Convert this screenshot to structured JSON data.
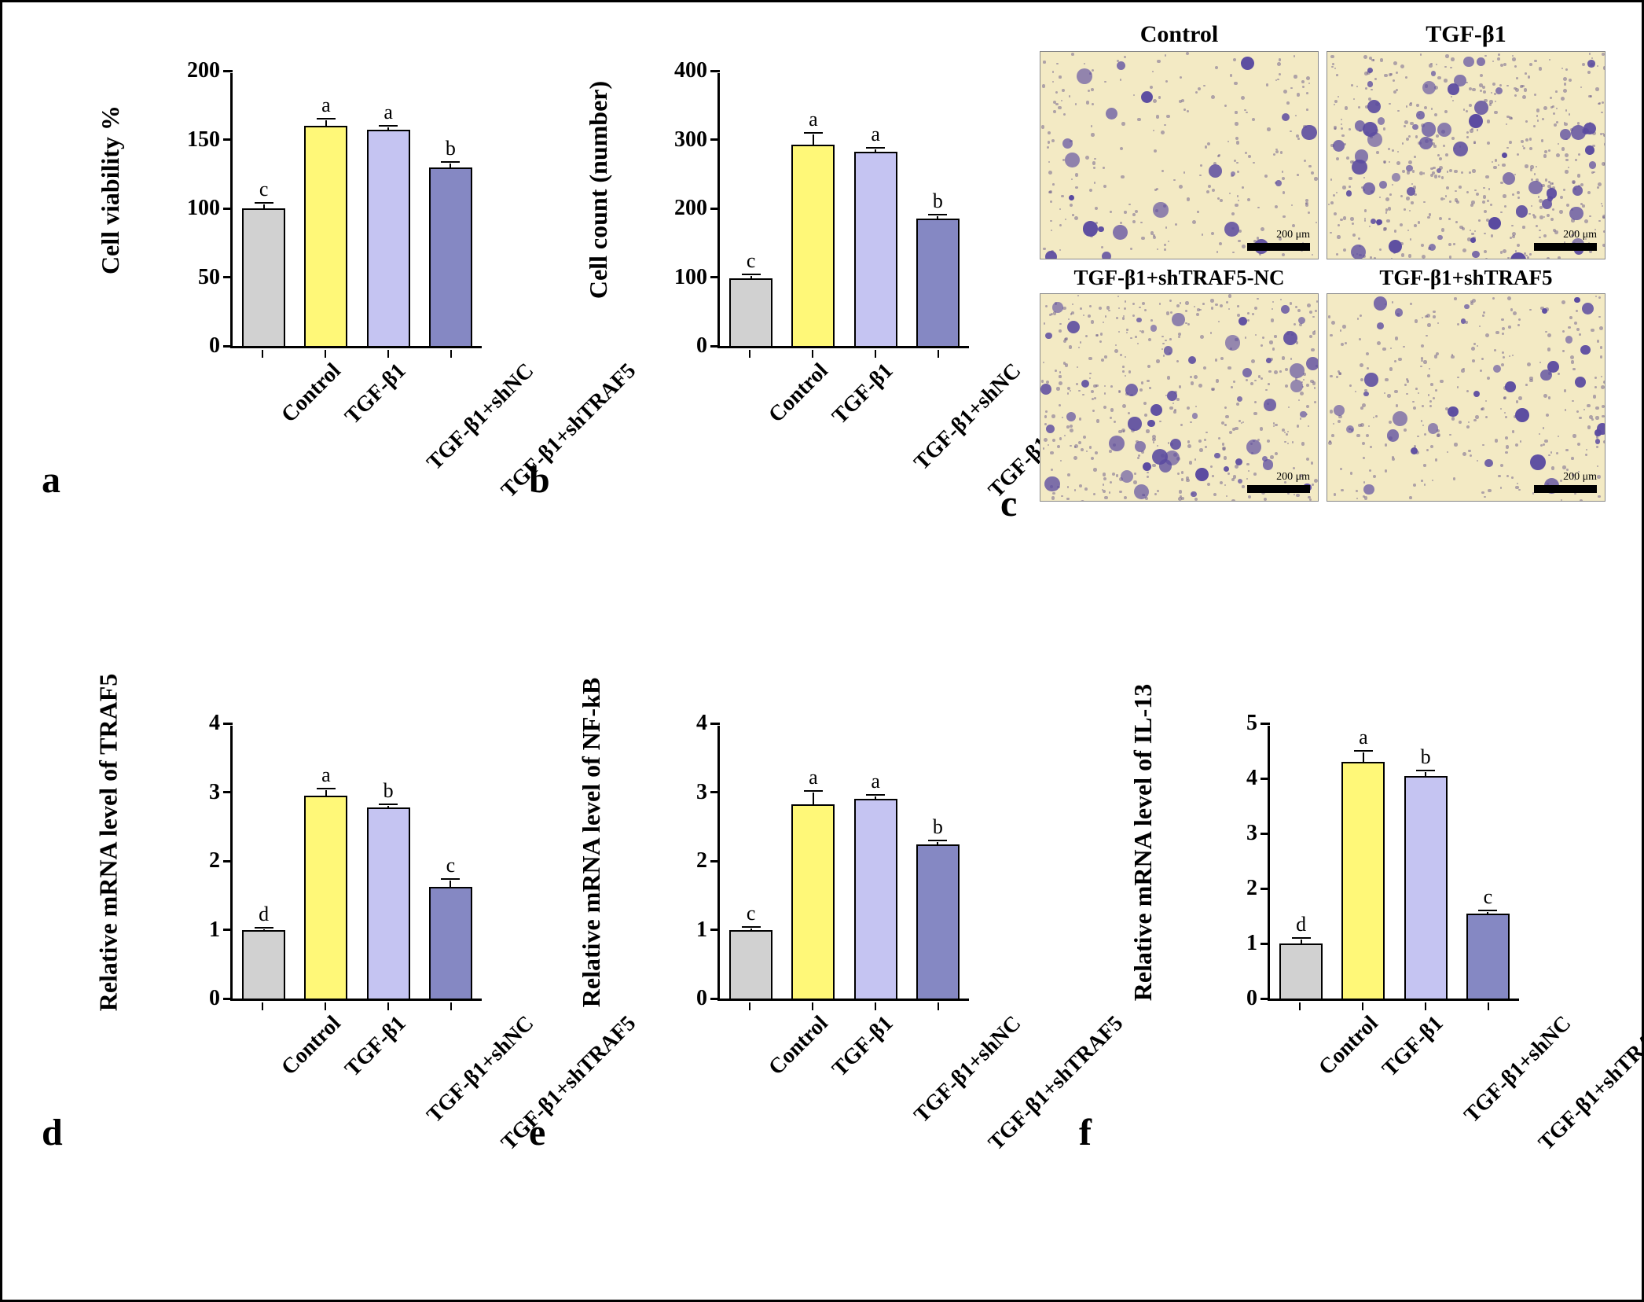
{
  "colors": {
    "control": "#d1d1d1",
    "tgfb1": "#fff878",
    "tgfb1_shnc": "#c5c4f2",
    "tgfb1_shtraf5": "#8588c3",
    "axis": "#000000",
    "bg": "#ffffff",
    "micro_bg": "#f3eac4",
    "micro_dot": "#5a4aa0"
  },
  "typography": {
    "axis_font": "Times New Roman",
    "axis_label_pt": 32,
    "tick_label_pt": 28,
    "sig_pt": 26,
    "panel_letter_pt": 48
  },
  "categories": [
    "Control",
    "TGF-β1",
    "TGF-β1+shNC",
    "TGF-β1+shTRAF5"
  ],
  "charts": {
    "a": {
      "type": "bar",
      "ylabel": "Cell viability %",
      "ylim": [
        0,
        200
      ],
      "ytick_step": 50,
      "values": [
        100,
        160,
        157,
        130
      ],
      "errors": [
        4,
        5,
        3,
        4
      ],
      "sigs": [
        "c",
        "a",
        "a",
        "b"
      ],
      "letter": "a"
    },
    "b": {
      "type": "bar",
      "ylabel": "Cell count (number)",
      "ylim": [
        0,
        400
      ],
      "ytick_step": 100,
      "values": [
        98,
        293,
        282,
        185
      ],
      "errors": [
        6,
        17,
        6,
        6
      ],
      "sigs": [
        "c",
        "a",
        "a",
        "b"
      ],
      "letter": "b"
    },
    "d": {
      "type": "bar",
      "ylabel": "Relative mRNA level of  TRAF5",
      "ylim": [
        0,
        4
      ],
      "ytick_step": 1,
      "values": [
        1.0,
        2.95,
        2.78,
        1.62
      ],
      "errors": [
        0.03,
        0.1,
        0.04,
        0.12
      ],
      "sigs": [
        "d",
        "a",
        "b",
        "c"
      ],
      "letter": "d"
    },
    "e": {
      "type": "bar",
      "ylabel": "Relative mRNA level of NF-kB",
      "ylim": [
        0,
        4
      ],
      "ytick_step": 1,
      "values": [
        1.0,
        2.82,
        2.9,
        2.24
      ],
      "errors": [
        0.04,
        0.2,
        0.06,
        0.06
      ],
      "sigs": [
        "c",
        "a",
        "a",
        "b"
      ],
      "letter": "e"
    },
    "f": {
      "type": "bar",
      "ylabel": "Relative mRNA level of IL-13",
      "ylim": [
        0,
        5
      ],
      "ytick_step": 1,
      "values": [
        1.0,
        4.3,
        4.05,
        1.55
      ],
      "errors": [
        0.1,
        0.2,
        0.1,
        0.05
      ],
      "sigs": [
        "d",
        "a",
        "b",
        "c"
      ],
      "letter": "f"
    }
  },
  "micro": {
    "letter": "c",
    "scale_text": "200 μm",
    "panels": [
      {
        "title": "Control",
        "density": 0.35
      },
      {
        "title": "TGF-β1",
        "density": 1.0
      },
      {
        "title": "TGF-β1+shTRAF5-NC",
        "density": 0.85
      },
      {
        "title": "TGF-β1+shTRAF5",
        "density": 0.55
      }
    ],
    "bg": "#f3eac4",
    "dot_color": "#5a4aa0"
  }
}
